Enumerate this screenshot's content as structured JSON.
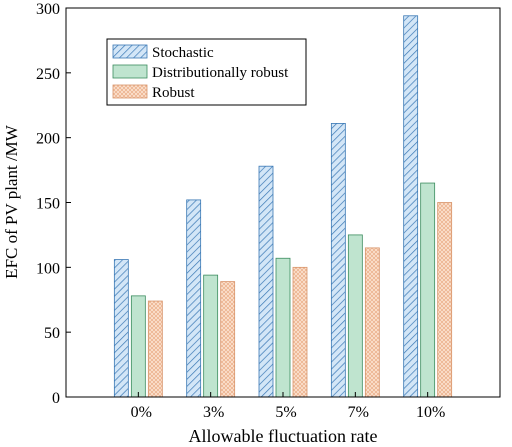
{
  "chart_data": {
    "type": "bar",
    "title": "",
    "xlabel": "Allowable fluctuation rate",
    "ylabel": "EFC of PV plant /MW",
    "categories": [
      "0%",
      "3%",
      "5%",
      "7%",
      "10%"
    ],
    "ylim": [
      0,
      300
    ],
    "yticks": [
      0,
      50,
      100,
      150,
      200,
      250,
      300
    ],
    "grid": false,
    "legend_position": "top-left",
    "series": [
      {
        "name": "Stochastic",
        "values": [
          106,
          152,
          178,
          211,
          294
        ],
        "color": "#d3e6f7",
        "stroke": "#3a78b5",
        "pattern": "diagonal-hatch"
      },
      {
        "name": "Distributionally robust",
        "values": [
          78,
          94,
          107,
          125,
          165
        ],
        "color": "#bfe4cf",
        "stroke": "#3b8c5e",
        "pattern": "solid"
      },
      {
        "name": "Robust",
        "values": [
          74,
          89,
          100,
          115,
          150
        ],
        "color": "#fbe0cd",
        "stroke": "#d8946a",
        "pattern": "cross-hatch"
      }
    ]
  }
}
